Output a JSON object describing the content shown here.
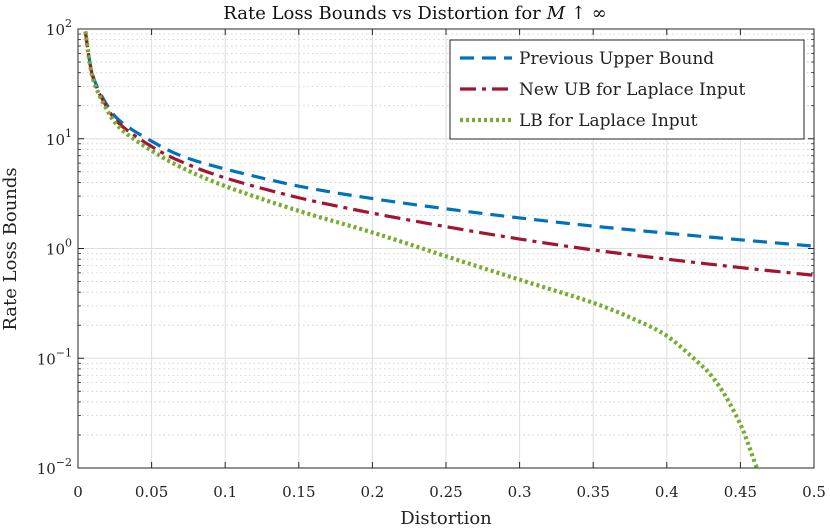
{
  "chart_data": {
    "type": "line",
    "title": "Rate Loss Bounds vs Distortion for",
    "title_math": "M ↑ ∞",
    "xlabel": "Distortion",
    "ylabel": "Rate Loss Bounds",
    "xlim": [
      0,
      0.5
    ],
    "ylim": [
      0.01,
      100
    ],
    "yscale": "log",
    "grid": true,
    "legend_position": "top-right",
    "x_ticks": [
      {
        "value": 0,
        "label": "0"
      },
      {
        "value": 0.05,
        "label": "0.05"
      },
      {
        "value": 0.1,
        "label": "0.1"
      },
      {
        "value": 0.15,
        "label": "0.15"
      },
      {
        "value": 0.2,
        "label": "0.2"
      },
      {
        "value": 0.25,
        "label": "0.25"
      },
      {
        "value": 0.3,
        "label": "0.3"
      },
      {
        "value": 0.35,
        "label": "0.35"
      },
      {
        "value": 0.4,
        "label": "0.4"
      },
      {
        "value": 0.45,
        "label": "0.45"
      },
      {
        "value": 0.5,
        "label": "0.5"
      }
    ],
    "y_ticks": [
      {
        "value": 100,
        "base": "10",
        "exp": "2"
      },
      {
        "value": 10,
        "base": "10",
        "exp": "1"
      },
      {
        "value": 1,
        "base": "10",
        "exp": "0"
      },
      {
        "value": 0.1,
        "base": "10",
        "exp": "−1"
      },
      {
        "value": 0.01,
        "base": "10",
        "exp": "−2"
      }
    ],
    "series": [
      {
        "name": "Previous Upper Bound",
        "color": "#0072BD",
        "style": "dashed",
        "x": [
          0.005,
          0.01,
          0.02,
          0.03,
          0.05,
          0.07,
          0.1,
          0.15,
          0.2,
          0.25,
          0.3,
          0.35,
          0.4,
          0.45,
          0.5
        ],
        "y": [
          95,
          38,
          20,
          14,
          9.5,
          7.0,
          5.3,
          3.7,
          2.85,
          2.3,
          1.9,
          1.6,
          1.38,
          1.2,
          1.05
        ]
      },
      {
        "name": "New UB for Laplace Input",
        "color": "#A2142F",
        "style": "dashdot",
        "x": [
          0.005,
          0.01,
          0.02,
          0.03,
          0.05,
          0.07,
          0.1,
          0.15,
          0.2,
          0.25,
          0.3,
          0.35,
          0.4,
          0.45,
          0.5
        ],
        "y": [
          95,
          37,
          19,
          13,
          8.5,
          6.2,
          4.4,
          2.9,
          2.1,
          1.58,
          1.22,
          0.97,
          0.8,
          0.67,
          0.57
        ]
      },
      {
        "name": "LB for Laplace Input",
        "color": "#77AC30",
        "style": "dotted",
        "x": [
          0.005,
          0.01,
          0.02,
          0.03,
          0.05,
          0.07,
          0.1,
          0.15,
          0.2,
          0.25,
          0.3,
          0.35,
          0.38,
          0.4,
          0.42,
          0.43,
          0.44,
          0.45,
          0.455,
          0.46,
          0.462
        ],
        "y": [
          95,
          36,
          18,
          12,
          7.8,
          5.5,
          3.7,
          2.2,
          1.4,
          0.85,
          0.52,
          0.32,
          0.22,
          0.16,
          0.095,
          0.07,
          0.045,
          0.025,
          0.017,
          0.011,
          0.0095
        ]
      }
    ]
  }
}
